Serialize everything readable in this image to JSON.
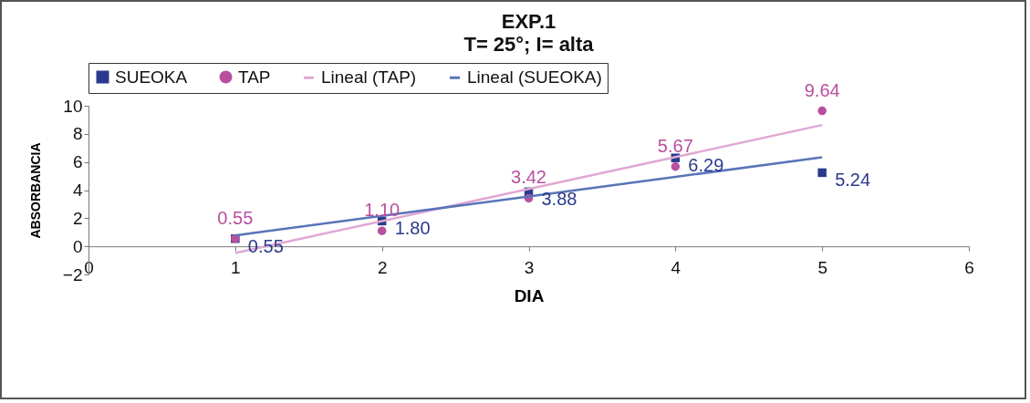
{
  "chart_data": {
    "type": "scatter",
    "title": "EXP.1",
    "subtitle": "T= 25°; I= alta",
    "xlabel": "DIA",
    "ylabel": "ABSORBANCIA",
    "x": [
      1,
      2,
      3,
      4,
      5
    ],
    "series": [
      {
        "name": "SUEOKA",
        "type": "scatter",
        "marker": "square",
        "color": "#2b3a8c",
        "values": [
          0.55,
          1.8,
          3.88,
          6.29,
          5.24
        ],
        "value_labels": [
          "0.55",
          "1.80",
          "3.88",
          "6.29",
          "5.24"
        ]
      },
      {
        "name": "TAP",
        "type": "scatter",
        "marker": "circle",
        "color": "#b8509e",
        "values": [
          0.55,
          1.1,
          3.42,
          5.67,
          9.64
        ],
        "value_labels": [
          "0.55",
          "1.10",
          "3.42",
          "5.67",
          "9.64"
        ]
      },
      {
        "name": "Lineal (TAP)",
        "type": "line",
        "color": "#e0a8d4",
        "values": [
          -0.47,
          1.8,
          4.08,
          6.35,
          8.63
        ]
      },
      {
        "name": "Lineal (SUEOKA)",
        "type": "line",
        "color": "#5a74b8",
        "values": [
          0.78,
          2.17,
          3.55,
          4.94,
          6.33
        ]
      }
    ],
    "xlim": [
      0,
      6
    ],
    "xticks": [
      0,
      1,
      2,
      3,
      4,
      5,
      6
    ],
    "ylim": [
      -2,
      10
    ],
    "yticks": [
      -2,
      0,
      2,
      4,
      6,
      8,
      10
    ],
    "legend": "top",
    "grid": false
  }
}
